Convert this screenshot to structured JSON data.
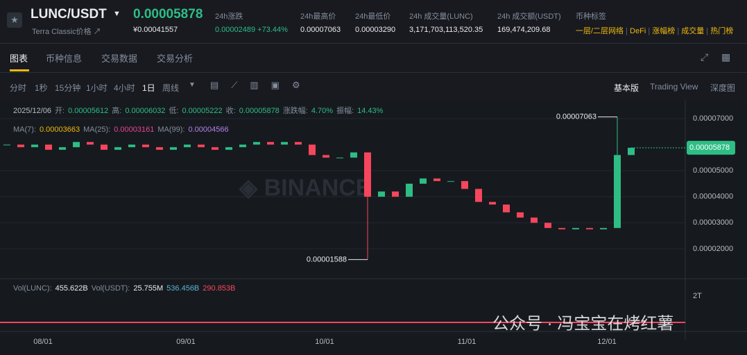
{
  "header": {
    "pair": "LUNC/USDT",
    "subtitle": "Terra Classic价格 ↗",
    "price": "0.00005878",
    "price_cny": "¥0.00041557",
    "stats": [
      {
        "label": "24h涨跌",
        "value": "0.00002489 +73.44%"
      },
      {
        "label": "24h最高价",
        "value": "0.00007063"
      },
      {
        "label": "24h最低价",
        "value": "0.00003290"
      },
      {
        "label": "24h 成交量(LUNC)",
        "value": "3,171,703,113,520.35"
      },
      {
        "label": "24h 成交额(USDT)",
        "value": "169,474,209.68"
      }
    ],
    "tags_label": "币种标签",
    "tags": [
      "一层/二层网络",
      "DeFi",
      "涨幅榜",
      "成交量",
      "热门榜"
    ]
  },
  "tabs": [
    "图表",
    "币种信息",
    "交易数据",
    "交易分析"
  ],
  "intervals": [
    "分时",
    "1秒",
    "15分钟",
    "1小时",
    "4小时",
    "1日",
    "周线"
  ],
  "views": [
    "基本版",
    "Trading View",
    "深度图"
  ],
  "info": {
    "date": "2025/12/06",
    "items": [
      [
        "开:",
        "0.00005612"
      ],
      [
        "高:",
        "0.00006032"
      ],
      [
        "低:",
        "0.00005222"
      ],
      [
        "收:",
        "0.00005878"
      ],
      [
        "涨跌幅:",
        "4.70%"
      ],
      [
        "振幅:",
        "14.43%"
      ]
    ]
  },
  "ma": [
    [
      "MA(7):",
      "0.00003663"
    ],
    [
      "MA(25):",
      "0.00003161"
    ],
    [
      "MA(99):",
      "0.00004566"
    ]
  ],
  "volume_info": [
    "Vol(LUNC):",
    "455.622B",
    "Vol(USDT):",
    "25.755M",
    "536.456B",
    "290.853B"
  ],
  "volume_tick": "2T",
  "xlabels": [
    "08/01",
    "09/01",
    "10/01",
    "11/01",
    "12/01"
  ],
  "watermark": "公众号 · 冯宝宝在烤红薯",
  "chart_data": {
    "type": "candlestick",
    "closes": [
      6e-05,
      5.9e-05,
      6e-05,
      5.8e-05,
      5.9e-05,
      6.1e-05,
      6e-05,
      5.8e-05,
      5.9e-05,
      6e-05,
      5.9e-05,
      5.8e-05,
      5.9e-05,
      6e-05,
      5.9e-05,
      5.8e-05,
      5.9e-05,
      6e-05,
      6.1e-05,
      6e-05,
      6.1e-05,
      6e-05,
      5.6e-05,
      5.5e-05,
      5.5e-05,
      5.7e-05,
      4e-05,
      4.2e-05,
      4e-05,
      4.5e-05,
      4.7e-05,
      4.6e-05,
      4.6e-05,
      4.3e-05,
      3.8e-05,
      3.7e-05,
      3.4e-05,
      3.2e-05,
      3e-05,
      2.8e-05,
      2.75e-05,
      2.8e-05,
      2.75e-05,
      2.8e-05,
      5.6e-05,
      5.878e-05
    ],
    "ylim": [
      1.04e-05,
      7.69e-05
    ],
    "yticks": [
      {
        "value": 2e-05,
        "label": "0.00002000"
      },
      {
        "value": 3e-05,
        "label": "0.00003000"
      },
      {
        "value": 4e-05,
        "label": "0.00004000"
      },
      {
        "value": 5e-05,
        "label": "0.00005000"
      },
      {
        "value": 7e-05,
        "label": "0.00007000"
      }
    ],
    "high": {
      "index": 44,
      "value": 7.063e-05,
      "label": "0.00007063"
    },
    "low": {
      "index": 26,
      "value": 1.588e-05,
      "label": "0.00001588"
    },
    "last": {
      "value": 5.878e-05,
      "label": "0.00005878"
    },
    "up_color": "#2ebd85",
    "down_color": "#f6465d"
  }
}
